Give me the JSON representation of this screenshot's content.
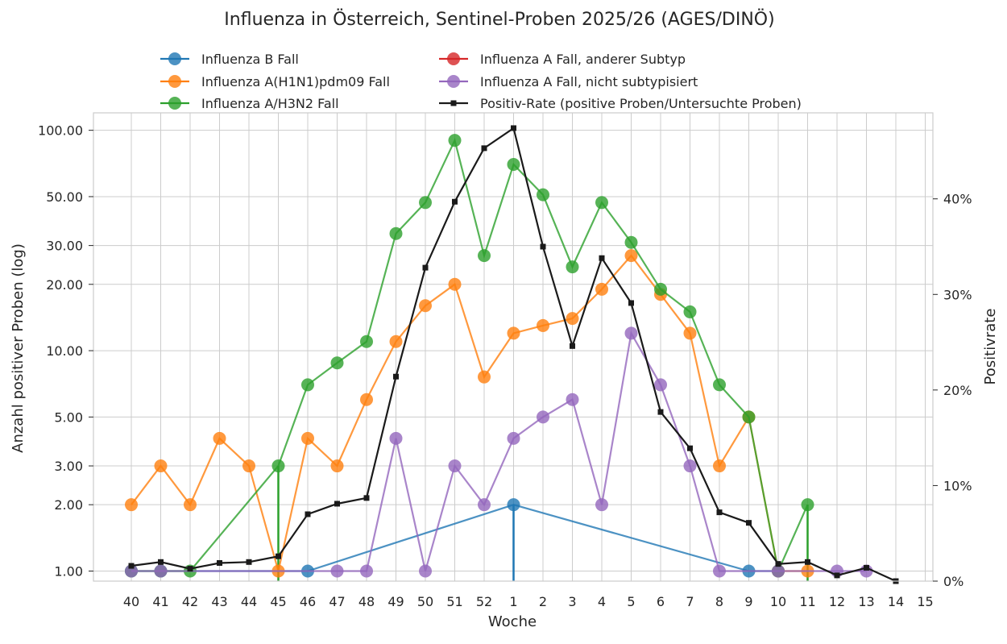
{
  "chart_data": {
    "type": "line",
    "title": "Influenza in Österreich, Sentinel-Proben 2025/26 (AGES/DINÖ)",
    "xlabel": "Woche",
    "ylabel": "Anzahl positiver Proben (log)",
    "y2label": "Positivrate",
    "y_scale": "log",
    "ylim": [
      0.9,
      120
    ],
    "y2lim": [
      0,
      49
    ],
    "grid": true,
    "legend_position": "top",
    "categories": [
      "40",
      "41",
      "42",
      "43",
      "44",
      "45",
      "46",
      "47",
      "48",
      "49",
      "50",
      "51",
      "52",
      "1",
      "2",
      "3",
      "4",
      "5",
      "6",
      "7",
      "8",
      "9",
      "10",
      "11",
      "12",
      "13",
      "14",
      "15"
    ],
    "y_ticks": [
      1,
      2,
      3,
      5,
      10,
      20,
      30,
      50,
      100
    ],
    "y_tick_labels": [
      "1.00",
      "2.00",
      "3.00",
      "5.00",
      "10.00",
      "20.00",
      "30.00",
      "50.00",
      "100.00"
    ],
    "y2_ticks": [
      0,
      10,
      20,
      30,
      40
    ],
    "y2_tick_labels": [
      "0%",
      "10%",
      "20%",
      "30%",
      "40%"
    ],
    "series": [
      {
        "name": "Influenza B Fall",
        "color": "#1f77b4",
        "axis": "left",
        "marker": "circle",
        "values": [
          1,
          1,
          null,
          null,
          null,
          null,
          1,
          null,
          null,
          null,
          null,
          null,
          null,
          2,
          null,
          null,
          null,
          null,
          null,
          null,
          null,
          1,
          1,
          null,
          null,
          null,
          null,
          null
        ]
      },
      {
        "name": "Influenza A(H1N1)pdm09 Fall",
        "color": "#ff7f0e",
        "axis": "left",
        "marker": "circle",
        "values": [
          2,
          3,
          2,
          4,
          3,
          1,
          4,
          3,
          6,
          11,
          16,
          20,
          7.6,
          12,
          13,
          14,
          19,
          27,
          18,
          12,
          3,
          5,
          1,
          1,
          null,
          null,
          null,
          null
        ]
      },
      {
        "name": "Influenza A/H3N2 Fall",
        "color": "#2ca02c",
        "axis": "left",
        "marker": "circle",
        "values": [
          1,
          1,
          1,
          null,
          null,
          3,
          7,
          8.8,
          11,
          34,
          47,
          90,
          27,
          70,
          51,
          24,
          47,
          31,
          19,
          15,
          7,
          5,
          1,
          2,
          null,
          null,
          null,
          null
        ]
      },
      {
        "name": "Influenza A Fall, anderer Subtyp",
        "color": "#d62728",
        "axis": "left",
        "marker": "circle",
        "values": [
          null,
          null,
          null,
          null,
          null,
          null,
          null,
          null,
          null,
          null,
          null,
          null,
          null,
          null,
          null,
          null,
          null,
          null,
          null,
          null,
          null,
          null,
          null,
          null,
          null,
          null,
          null,
          null
        ]
      },
      {
        "name": "Influenza A Fall, nicht subtypisiert",
        "color": "#9467bd",
        "axis": "left",
        "marker": "circle",
        "values": [
          1,
          1,
          null,
          null,
          null,
          null,
          null,
          1,
          1,
          4,
          1,
          3,
          2,
          4,
          5,
          6,
          2,
          12,
          7,
          3,
          1,
          null,
          1,
          null,
          1,
          1,
          null,
          null
        ]
      },
      {
        "name": "Positiv-Rate (positive Proben/Untersuchte Proben)",
        "color": "#1a1a1a",
        "axis": "right",
        "marker": "square",
        "values": [
          1.6,
          2.0,
          1.3,
          1.9,
          2.0,
          2.6,
          7.0,
          8.1,
          8.7,
          21.4,
          32.8,
          39.7,
          45.3,
          47.4,
          35.0,
          24.6,
          33.8,
          29.1,
          17.7,
          13.9,
          7.2,
          6.1,
          1.8,
          2.0,
          0.6,
          1.4,
          0.0,
          null
        ]
      }
    ],
    "stems": [
      {
        "series": "Influenza B Fall",
        "x": "1",
        "value": 2
      },
      {
        "series": "Influenza A/H3N2 Fall",
        "x": "45",
        "value": 3
      },
      {
        "series": "Influenza A/H3N2 Fall",
        "x": "11",
        "value": 2
      }
    ]
  }
}
